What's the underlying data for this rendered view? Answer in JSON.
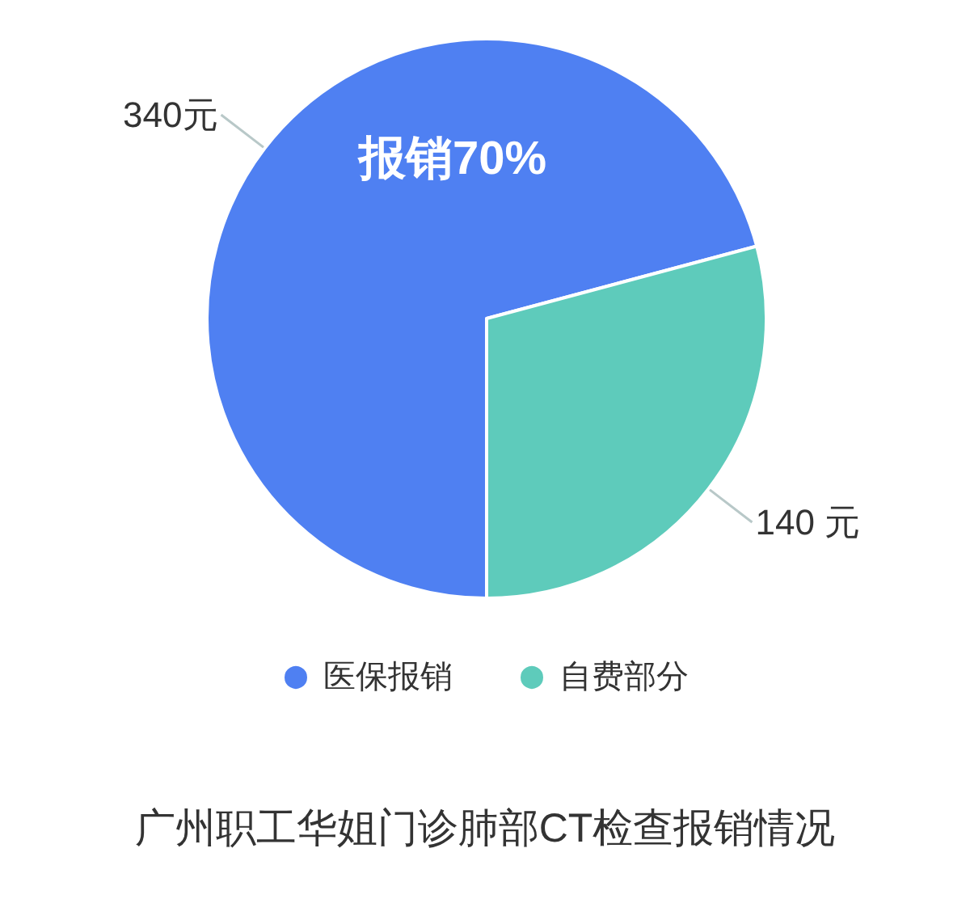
{
  "chart_data": {
    "type": "pie",
    "title": "广州职工华姐门诊肺部CT检查报销情况",
    "categories": [
      "医保报销",
      "自费部分"
    ],
    "values": [
      340,
      140
    ],
    "colors": [
      "#4f80f2",
      "#5ecbbb"
    ],
    "value_labels": [
      "340元",
      "140 元"
    ],
    "annotations": [
      "报销70%"
    ],
    "legend": "bottom"
  }
}
